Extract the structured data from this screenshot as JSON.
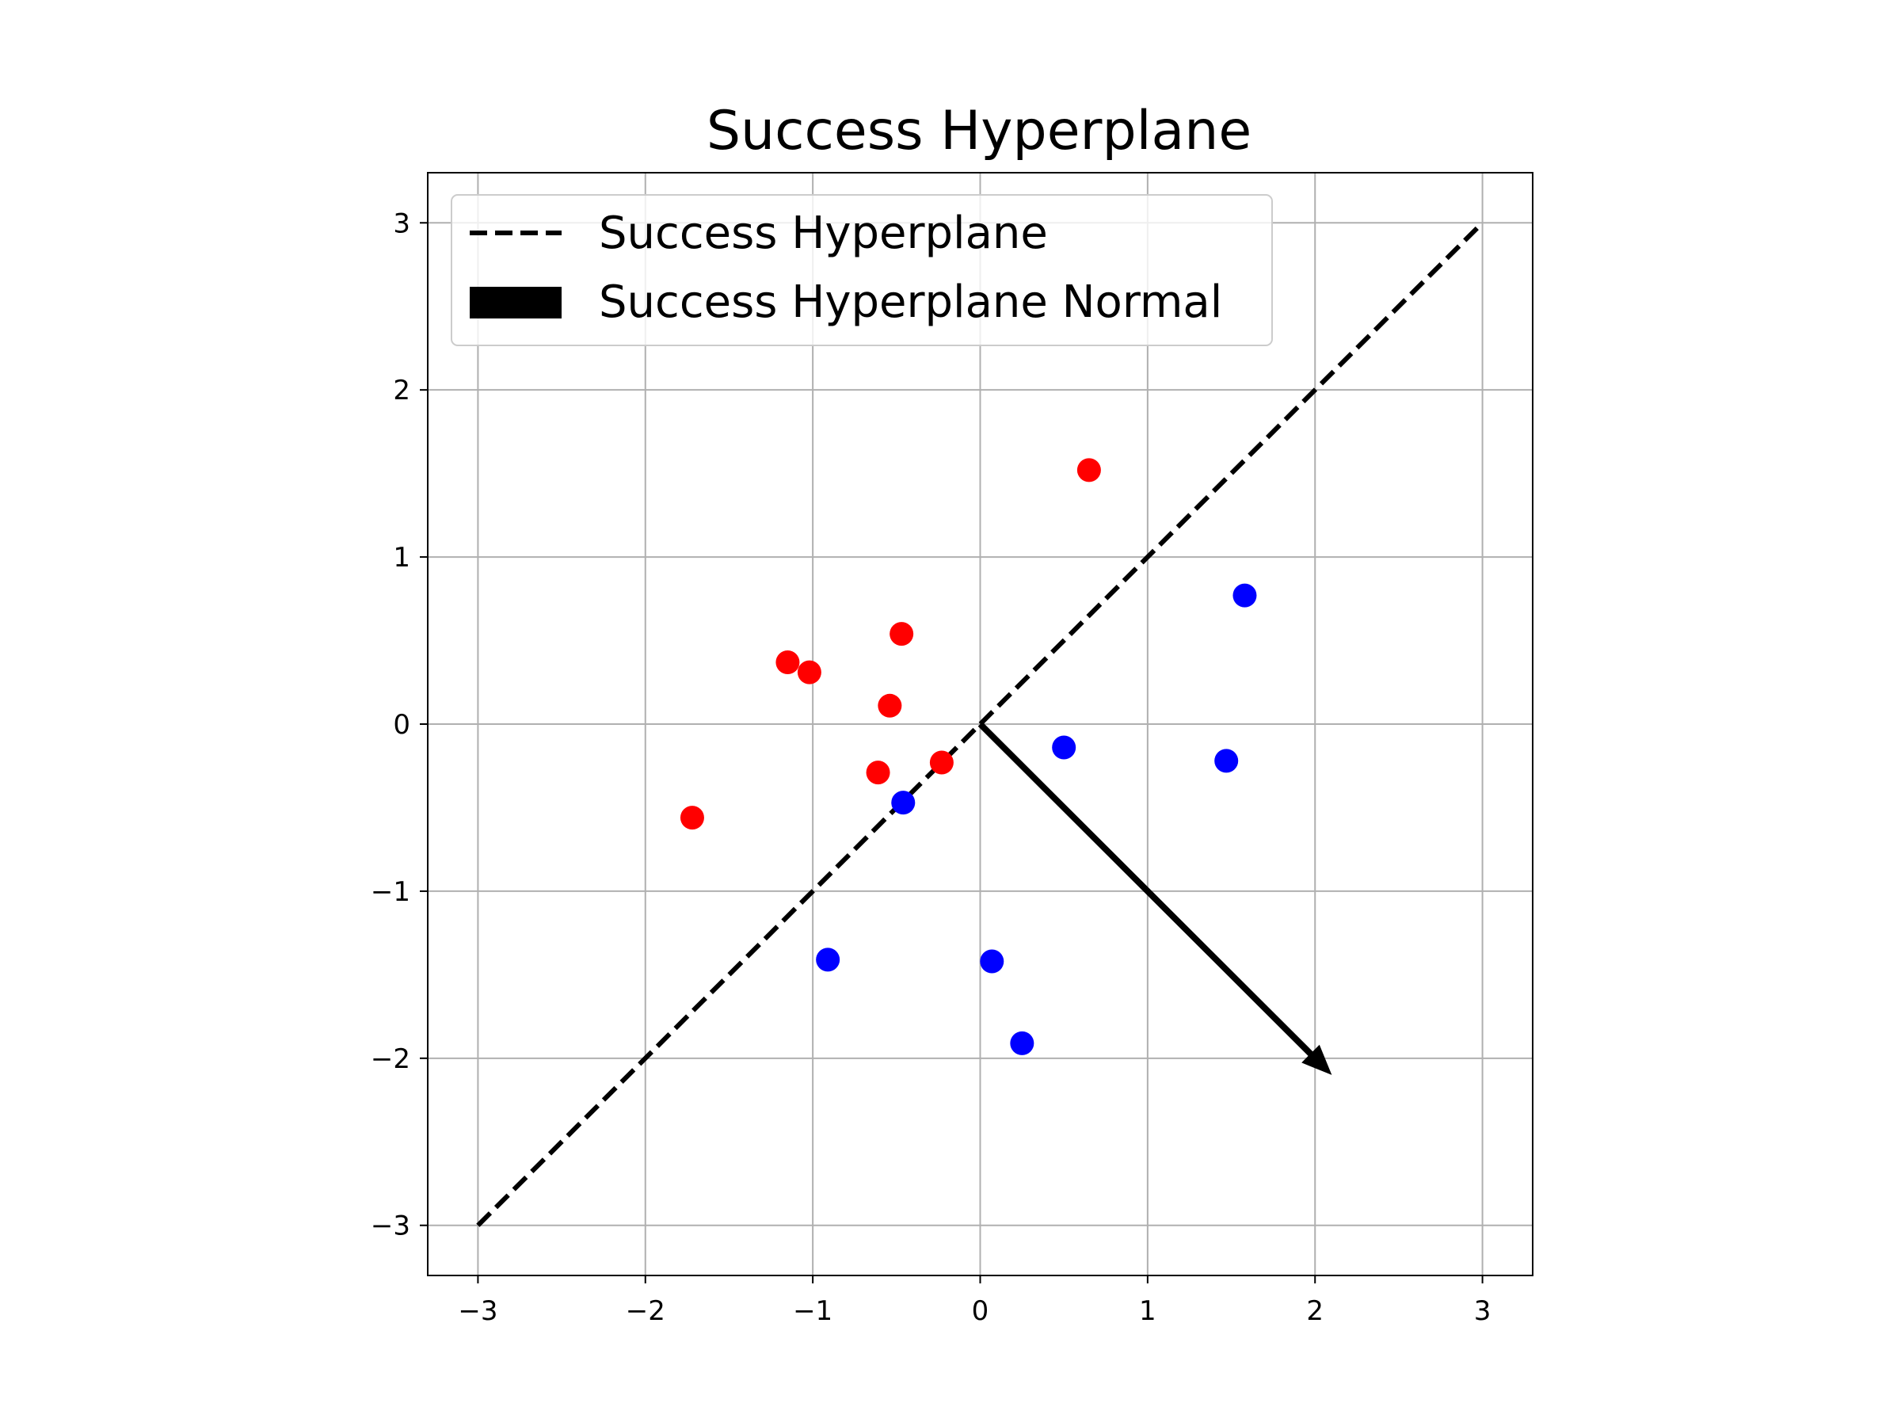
{
  "chart_data": {
    "type": "scatter",
    "title": "Success Hyperplane",
    "xlabel": "",
    "ylabel": "",
    "xlim": [
      -3.3,
      3.3
    ],
    "ylim": [
      -3.3,
      3.3
    ],
    "xticks": [
      -3,
      -2,
      -1,
      0,
      1,
      2,
      3
    ],
    "yticks": [
      -3,
      -2,
      -1,
      0,
      1,
      2,
      3
    ],
    "xtick_labels": [
      "−3",
      "−2",
      "−1",
      "0",
      "1",
      "2",
      "3"
    ],
    "ytick_labels": [
      "−3",
      "−2",
      "−1",
      "0",
      "1",
      "2",
      "3"
    ],
    "grid": true,
    "legend_position": "upper-left",
    "legend": [
      {
        "label": "Success Hyperplane",
        "style": "dashed-line",
        "color": "#000000"
      },
      {
        "label": "Success Hyperplane Normal",
        "style": "filled-patch",
        "color": "#000000"
      }
    ],
    "hyperplane": {
      "x": [
        -3,
        3
      ],
      "y": [
        -3,
        3
      ],
      "color": "#000000",
      "style": "dashed"
    },
    "normal_arrow": {
      "x0": 0,
      "y0": 0,
      "x1": 2.1,
      "y1": -2.1,
      "color": "#000000"
    },
    "series": [
      {
        "color": "#ff0000",
        "points": [
          [
            0.65,
            1.52
          ],
          [
            -0.47,
            0.54
          ],
          [
            -1.15,
            0.37
          ],
          [
            -1.02,
            0.31
          ],
          [
            -0.54,
            0.11
          ],
          [
            -0.61,
            -0.29
          ],
          [
            -0.23,
            -0.23
          ],
          [
            -1.72,
            -0.56
          ]
        ]
      },
      {
        "color": "#0000ff",
        "points": [
          [
            1.58,
            0.77
          ],
          [
            0.5,
            -0.14
          ],
          [
            1.47,
            -0.22
          ],
          [
            -0.46,
            -0.47
          ],
          [
            -0.91,
            -1.41
          ],
          [
            0.07,
            -1.42
          ],
          [
            0.25,
            -1.91
          ]
        ]
      }
    ]
  }
}
